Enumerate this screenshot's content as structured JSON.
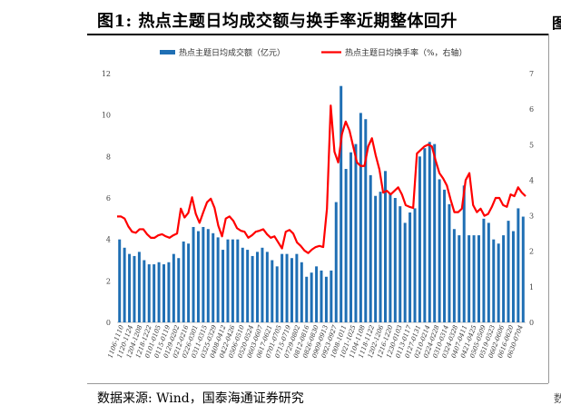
{
  "figure": {
    "title": "图1:  热点主题日均成交额与换手率近期整体回升",
    "source": "数据来源:  Wind，国泰海通证券研究",
    "right_stub": "图",
    "right_stub_bottom": "数"
  },
  "chart_data": {
    "type": "bar+line",
    "title": "热点主题日均成交额与换手率近期整体回升",
    "y_left": {
      "min": 0,
      "max": 12,
      "ticks": [
        0,
        2,
        4,
        6,
        8,
        10,
        12
      ]
    },
    "y_right": {
      "min": 0,
      "max": 7,
      "ticks": [
        0,
        1,
        2,
        3,
        4,
        5,
        6,
        7
      ]
    },
    "x_tick_labels": [
      "1106-1110",
      "1120-1124",
      "1204-1208",
      "1218-1222",
      "0101-0105",
      "0115-0119",
      "0129-0202",
      "0212-0216",
      "0226-0301",
      "0311-0315",
      "0325-0329",
      "0408-0412",
      "0422-0426",
      "0506-0510",
      "0520-0524",
      "0603-0607",
      "0617-0621",
      "0701-0705",
      "0715-0719",
      "0729-0802",
      "0812-0816",
      "0826-0830",
      "0909-0913",
      "0923-0927",
      "1008-1011",
      "1021-1025",
      "1104-1108",
      "1118-1122",
      "1202-1206",
      "1216-1220",
      "1230-0103",
      "0113-0117",
      "0127-0131",
      "0210-0214",
      "0224-0228",
      "0310-0314",
      "0324-0328",
      "0407-0411",
      "0421-0425",
      "0505-0509",
      "0519-0523",
      "0602-0606",
      "0616-0620",
      "0630-0704"
    ],
    "series": [
      {
        "name": "热点主题日均成交额（亿元）",
        "type": "bar",
        "axis": "left",
        "color": "#1f6fb4",
        "values": [
          4.0,
          3.6,
          3.3,
          3.2,
          3.4,
          3.0,
          2.8,
          2.8,
          2.9,
          2.8,
          2.9,
          3.3,
          3.1,
          3.9,
          3.8,
          4.6,
          4.4,
          4.6,
          4.5,
          4.3,
          4.1,
          3.5,
          4.0,
          4.0,
          4.0,
          3.6,
          3.5,
          3.2,
          3.4,
          3.6,
          3.4,
          3.0,
          2.7,
          3.3,
          3.3,
          3.1,
          3.3,
          2.9,
          2.2,
          2.4,
          2.7,
          2.5,
          2.2,
          2.5,
          5.8,
          11.4,
          7.4,
          8.2,
          8.6,
          10.1,
          9.8,
          7.1,
          6.1,
          6.3,
          7.3,
          6.2,
          6.0,
          5.6,
          4.8,
          5.3,
          5.5,
          8.0,
          8.4,
          8.7,
          8.6,
          6.9,
          6.4,
          5.7,
          4.5,
          4.2,
          6.6,
          4.2,
          4.2,
          4.2,
          5.0,
          4.8,
          4.0,
          3.8,
          4.2,
          4.9,
          4.4,
          5.5,
          5.1
        ]
      },
      {
        "name": "热点主题日均换手率（%，右轴）",
        "type": "line",
        "axis": "right",
        "color": "#ff0000",
        "values": [
          2.98,
          2.98,
          2.92,
          2.7,
          2.55,
          2.52,
          2.62,
          2.62,
          2.48,
          2.38,
          2.38,
          2.45,
          2.48,
          2.42,
          2.38,
          2.45,
          2.5,
          3.2,
          2.95,
          3.08,
          3.52,
          3.05,
          2.8,
          3.1,
          3.38,
          3.48,
          3.22,
          2.72,
          2.42,
          2.92,
          2.98,
          2.86,
          2.65,
          2.58,
          2.55,
          2.38,
          2.45,
          2.55,
          2.58,
          2.62,
          2.48,
          2.38,
          2.42,
          2.25,
          2.08,
          2.55,
          2.6,
          2.5,
          2.25,
          2.15,
          2.02,
          1.95,
          2.05,
          2.12,
          2.15,
          2.12,
          3.2,
          6.1,
          4.8,
          4.5,
          5.3,
          5.65,
          5.4,
          4.95,
          4.5,
          4.4,
          4.4,
          4.95,
          5.18,
          4.7,
          4.3,
          3.65,
          3.7,
          3.6,
          3.7,
          3.8,
          3.6,
          3.3,
          3.25,
          3.22,
          4.75,
          4.85,
          4.95,
          5.0,
          4.95,
          4.55,
          4.2,
          4.05,
          3.85,
          3.45,
          3.1,
          3.1,
          3.2,
          4.0,
          4.2,
          3.3,
          3.1,
          3.2,
          3.0,
          3.05,
          3.25,
          3.5,
          3.5,
          3.3,
          3.25,
          3.6,
          3.55,
          3.8,
          3.65,
          3.55
        ]
      }
    ]
  }
}
